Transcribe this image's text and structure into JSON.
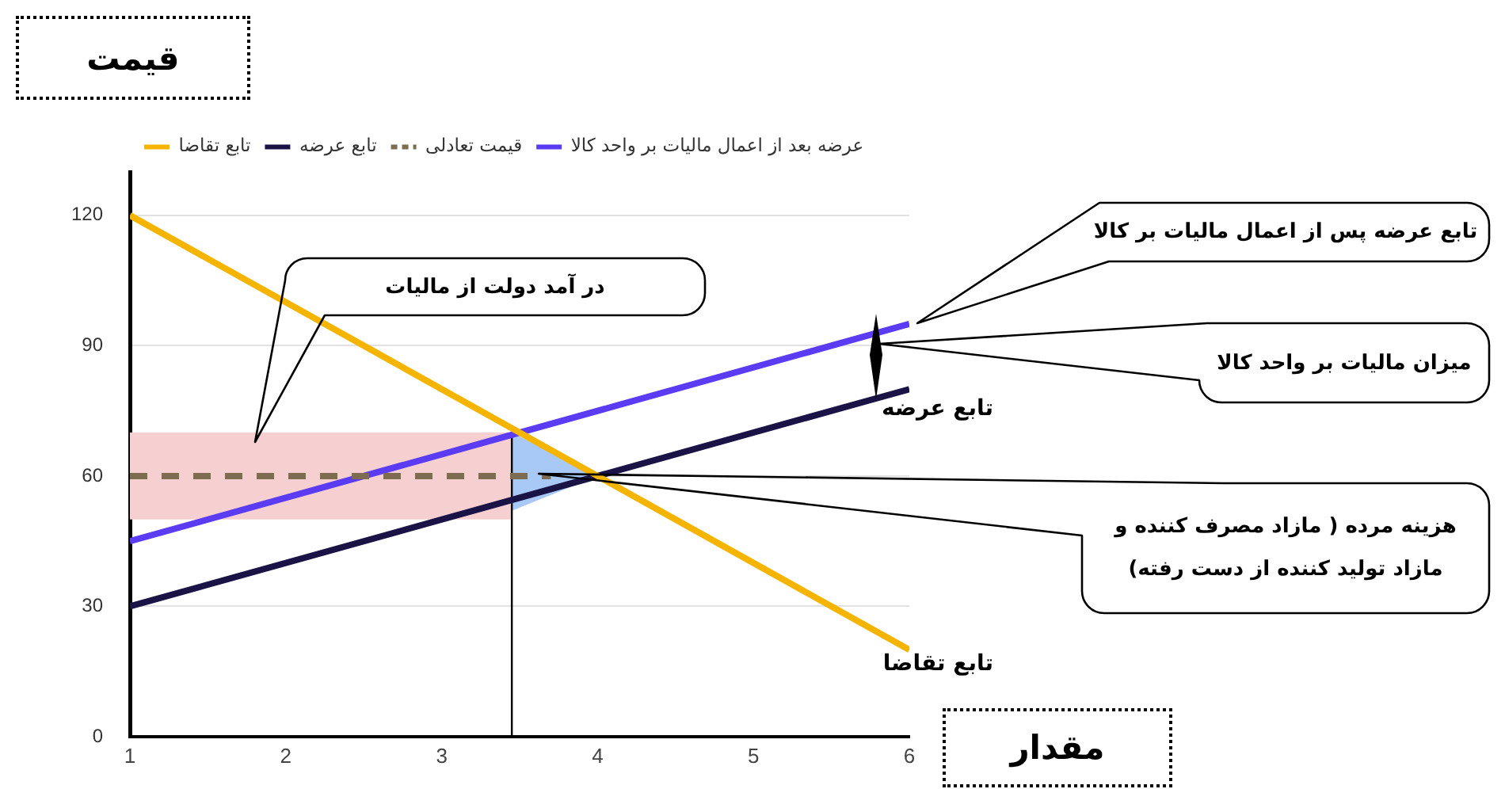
{
  "chart_data": {
    "type": "line",
    "xlabel": "مقدار",
    "ylabel": "قیمت",
    "xlim": [
      1,
      6
    ],
    "xticks": [
      1,
      2,
      3,
      4,
      5,
      6
    ],
    "ylim": [
      0,
      130
    ],
    "yticks": [
      0,
      30,
      60,
      90,
      120
    ],
    "grid": "y",
    "legend": "top left",
    "series": [
      {
        "name": "تابع تقاضا",
        "color": "#f4b400",
        "x": [
          1,
          6
        ],
        "values": [
          120,
          20
        ]
      },
      {
        "name": "تابع عرضه",
        "color": "#1a1446",
        "x": [
          1,
          6
        ],
        "values": [
          30,
          80
        ]
      },
      {
        "name": "قیمت تعادلی",
        "color": "#7e6c50",
        "x": [
          1,
          3.7
        ],
        "values": [
          60,
          60
        ],
        "line_style": "dashed"
      },
      {
        "name": "عرضه بعد از اعمال مالیات بر واحد کالا",
        "color": "#5b3cf2",
        "x": [
          1,
          6
        ],
        "values": [
          45,
          95
        ]
      },
      {
        "type": "line",
        "color": "#000000",
        "x": [
          3.45,
          3.45
        ],
        "values": [
          0,
          70
        ]
      },
      {
        "type": "area",
        "color": "#f6d0d0",
        "x": [
          1,
          3.45
        ],
        "values": [
          null,
          null
        ],
        "lower": [
          50,
          50
        ],
        "upper": [
          70,
          70
        ]
      },
      {
        "type": "area",
        "color": "#a8c8f5",
        "x": [
          3.45,
          4
        ],
        "values": [
          null,
          null
        ],
        "lower": [
          52,
          60
        ],
        "upper": [
          70,
          60
        ]
      }
    ],
    "annotations": [
      "تابع عرضه پس از اعمال مالیات بر کالا",
      "در آمد دولت از مالیات",
      "میزان مالیات بر واحد کالا",
      {
        "text": "تابع عرضه",
        "x": 6,
        "y": 80
      },
      "هزینه مرده ( مازاد مصرف کننده و مازاد تولید کننده از دست رفته)",
      {
        "text": "تابع تقاضا",
        "x": 6,
        "y": 20
      }
    ]
  }
}
